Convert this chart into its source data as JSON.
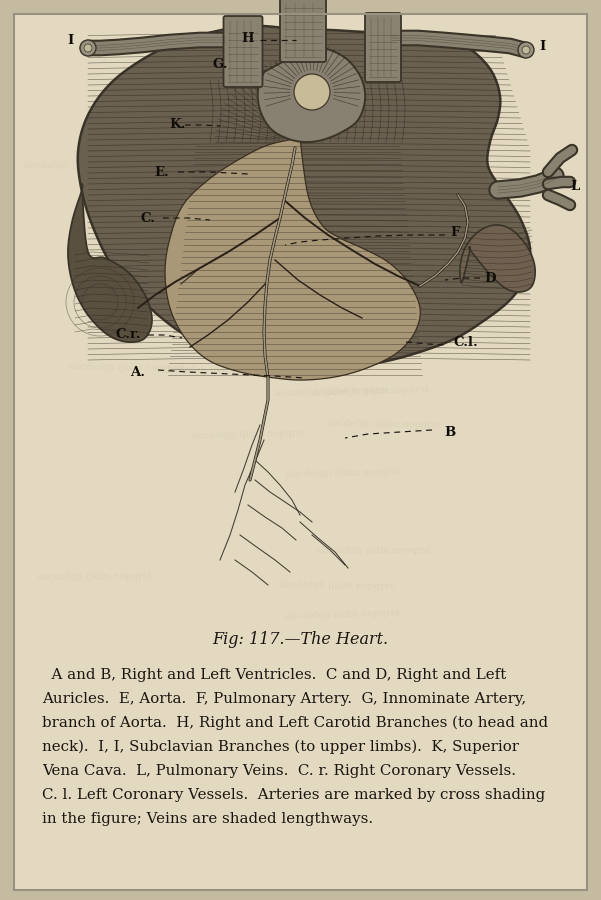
{
  "bg_outer": "#c5bba0",
  "bg_paper": "#e2d9c0",
  "bg_paper2": "#ddd4b8",
  "border_color": "#9a9280",
  "figure_caption": "Fig: 117.—The Heart.",
  "description_lines": [
    "  A and B, Right and Left Ventricles.  C and D, Right and Left",
    "Auricles.  E, Aorta.  F, Pulmonary Artery.  G, Innominate Artery,",
    "branch of Aorta.  H, Right and Left Carotid Branches (to head and",
    "neck).  I, I, Subclavian Branches (to upper limbs).  K, Superior",
    "Vena Cava.  L, Pulmonary Veins.  C. r. Right Coronary Vessels.",
    "C. l. Left Coronary Vessels.  Arteries are marked by cross shading",
    "in the figure; Veins are shaded lengthways."
  ],
  "text_color": "#1a1510",
  "caption_fontsize": 11.5,
  "body_fontsize": 10.8,
  "lc": "#1a1510",
  "heart_dark": "#3a3428",
  "heart_mid": "#605848",
  "heart_light": "#988870",
  "heart_pale": "#c8b898",
  "vessel_fill": "#808070",
  "paper_text": "#8a8270"
}
